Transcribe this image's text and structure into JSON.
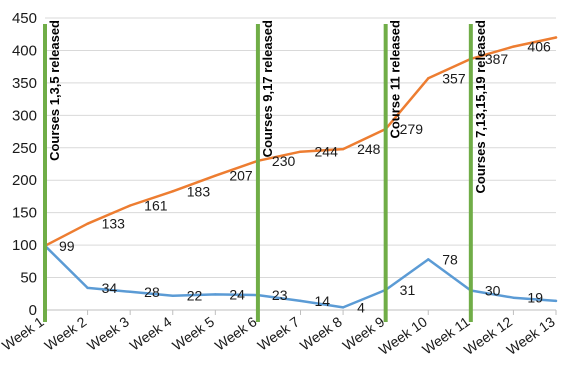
{
  "chart_data": {
    "type": "line",
    "title": "",
    "xlabel": "",
    "ylabel": "",
    "categories": [
      "Week 1",
      "Week 2",
      "Week 3",
      "Week 4",
      "Week 5",
      "Week 6",
      "Week 7",
      "Week 8",
      "Week 9",
      "Week 10",
      "Week 11",
      "Week 12",
      "Week 13"
    ],
    "ylim": [
      0,
      450
    ],
    "yticks": [
      "0",
      "50",
      "100",
      "150",
      "200",
      "250",
      "300",
      "350",
      "400",
      "450"
    ],
    "grid": true,
    "legend": "none",
    "series": [
      {
        "color": "#ed7d31",
        "values": [
          99,
          133,
          161,
          183,
          207,
          230,
          244,
          248,
          279,
          357,
          387,
          406,
          420
        ],
        "labels": [
          "99",
          "133",
          "161",
          "183",
          "207",
          "230",
          "244",
          "248",
          "279",
          "357",
          "387",
          "406",
          ""
        ]
      },
      {
        "color": "#5b9bd5",
        "values": [
          99,
          34,
          28,
          22,
          24,
          23,
          14,
          4,
          31,
          78,
          30,
          19,
          14
        ],
        "labels": [
          "",
          "34",
          "28",
          "22",
          "24",
          "23",
          "14",
          "4",
          "31",
          "78",
          "30",
          "19",
          ""
        ]
      }
    ],
    "annotations": [
      {
        "category_index": 0,
        "text": "Courses 1,3,5 released",
        "color": "#70ad47"
      },
      {
        "category_index": 5,
        "text": "Courses 9,17 released",
        "color": "#70ad47"
      },
      {
        "category_index": 8,
        "text": "Course 11 released",
        "color": "#70ad47"
      },
      {
        "category_index": 10,
        "text": "Courses 7,13,15,19 released",
        "color": "#70ad47"
      }
    ]
  }
}
